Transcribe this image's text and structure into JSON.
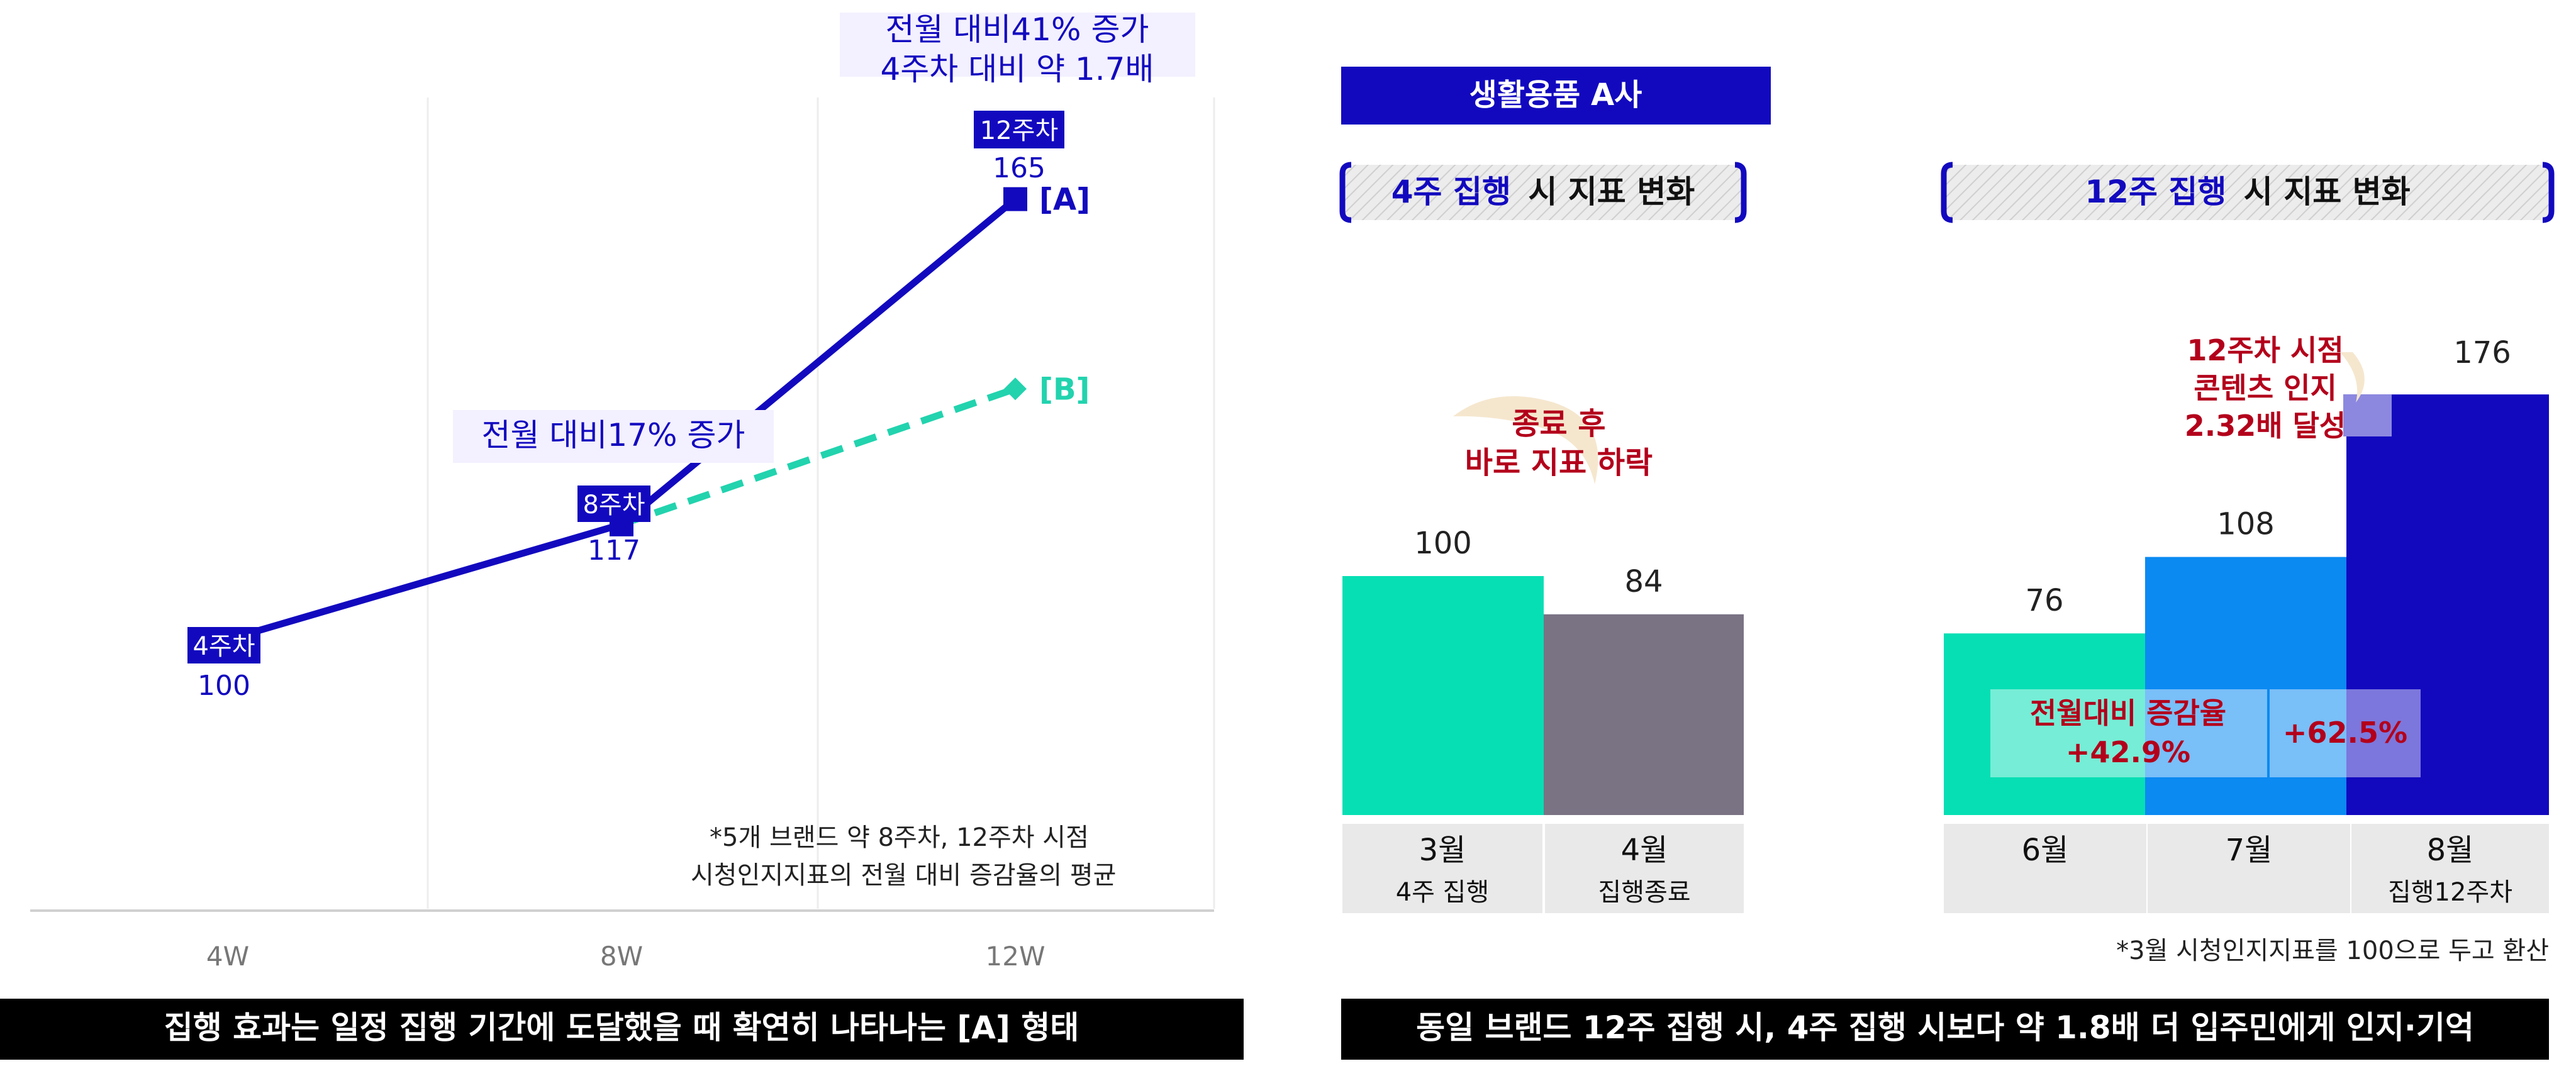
{
  "colors": {
    "navy": "#1209BF",
    "teal": "#22D3AE",
    "mint": "#06DFB4",
    "gray_bar": "#7A7384",
    "sky": "#0B8AF2",
    "dark_red": "#B3001B",
    "black": "#000000",
    "lavender": "#F3F0FF",
    "cell_gray": "#E9E9E9"
  },
  "left": {
    "footnote_line1": "*5개 브랜드 약 8주차, 12주차 시점",
    "footnote_line2": "시청인지지표의 전월 대비 증감율의 평균",
    "callout_top_line1": "전월 대비41% 증가",
    "callout_top_line2": "4주차 대비 약 1.7배",
    "callout_mid": "전월 대비17% 증가",
    "point_tags": [
      "4주차",
      "8주차",
      "12주차"
    ],
    "legend_a": "[A]",
    "legend_b": "[B]",
    "banner": "집행 효과는 일정 집행 기간에 도달했을 때 확연히 나타나는 [A] 형태"
  },
  "right": {
    "company": "생활용품 A사",
    "panel1_title_highlight": "4주 집행",
    "panel1_title_rest": "시 지표 변화",
    "panel2_title_highlight": "12주 집행",
    "panel2_title_rest": "시 지표 변화",
    "callout_drop_line1": "종료 후",
    "callout_drop_line2": "바로 지표 하락",
    "callout_peak_line1": "12주차 시점",
    "callout_peak_line2": "콘텐츠 인지",
    "callout_peak_line3": "2.32배 달성",
    "growth_label_line1": "전월대비 증감율",
    "growth_label_line2": "+42.9%",
    "growth_label2": "+62.5%",
    "footnote": "*3월 시청인지지표를 100으로 두고 환산",
    "banner": "동일 브랜드 12주 집행 시, 4주 집행 시보다 약 1.8배 더 입주민에게 인지·기억"
  },
  "chart_data": [
    {
      "type": "line",
      "x": [
        "4W",
        "8W",
        "12W"
      ],
      "ylim": [
        60,
        180
      ],
      "series": [
        {
          "name": "[A]",
          "values": [
            100,
            117,
            165
          ]
        },
        {
          "name": "[B]",
          "values": [
            null,
            117,
            137
          ]
        }
      ],
      "data_labels": [
        "100",
        "117",
        "165"
      ],
      "grid": "vertical"
    },
    {
      "type": "bar",
      "title": "4주 집행 시 지표 변화",
      "categories": [
        "3월",
        "4월"
      ],
      "sublabels": [
        "4주 집행",
        "집행종료"
      ],
      "values": [
        100,
        84
      ],
      "ylim": [
        0,
        200
      ]
    },
    {
      "type": "bar",
      "title": "12주 집행 시 지표 변화",
      "categories": [
        "6월",
        "7월",
        "8월"
      ],
      "sublabels": [
        "",
        "",
        "집행12주차"
      ],
      "values": [
        76,
        108,
        176
      ],
      "ylim": [
        0,
        200
      ]
    }
  ]
}
